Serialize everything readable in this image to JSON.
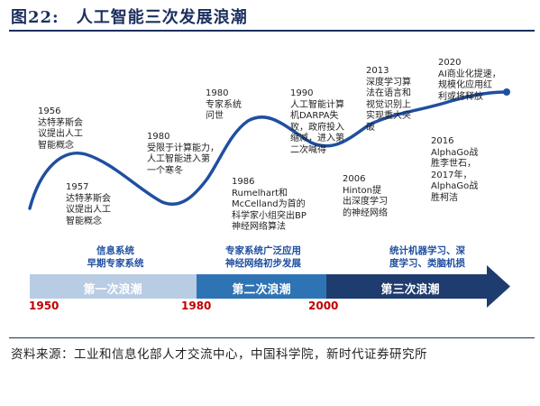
{
  "figure": {
    "title": "图22:　人工智能三次发展浪潮",
    "source": "资料来源：工业和信息化部人才交流中心，中国科学院，新时代证券研究所"
  },
  "colors": {
    "curve": "#1f4fa0",
    "dot": "#1f4fa0",
    "title": "#1b2f5e",
    "stage_text": "#1f4fa0",
    "year_text": "#c00000",
    "arrow_wave1": "#b8cce4",
    "arrow_wave2": "#2e74b5",
    "arrow_wave3": "#1f3c6e"
  },
  "milestones": [
    {
      "text": "1956\n达特茅斯会\n议提出人工\n智能概念"
    },
    {
      "text": "1957\n达特茅斯会\n议提出人工\n智能概念"
    },
    {
      "text": "1980\n受限于计算能力，\n人工智能进入第\n一个寒冬"
    },
    {
      "text": "1980\n专家系统\n问世"
    },
    {
      "text": "1986\nRumelhart和\nMcCelland为首的\n科学家小组突出BP\n神经网络算法"
    },
    {
      "text": "1990\n人工智能计算\n机DARPA失\n败，政府投入\n缩减，进入第\n二次喊得"
    },
    {
      "text": "2006\nHinton提\n出深度学习\n的神经网络"
    },
    {
      "text": "2013\n深度学习算\n法在语言和\n视觉识别上\n实现重大突\n破"
    },
    {
      "text": "2016\nAlphaGo战\n胜李世石，\n2017年，\nAlphaGo战\n胜柯洁"
    },
    {
      "text": "2020\nAI商业化提速，\n规模化应用红\n利或将释放"
    }
  ],
  "stages": [
    {
      "text": "信息系统\n早期专家系统"
    },
    {
      "text": "专家系统广泛应用\n神经网络初步发展"
    },
    {
      "text": "统计机器学习、深\n度学习、类脑机损"
    }
  ],
  "waves": [
    {
      "label": "第一次浪潮"
    },
    {
      "label": "第二次浪潮"
    },
    {
      "label": "第三次浪潮"
    }
  ],
  "years": [
    "1950",
    "1980",
    "2000"
  ]
}
